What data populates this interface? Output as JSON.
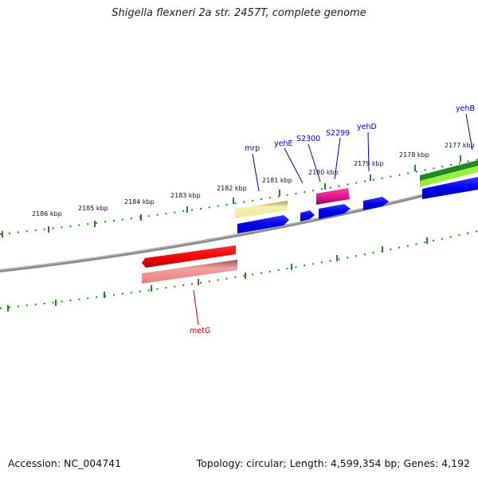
{
  "title": "Shigella flexneri 2a str. 2457T, complete genome",
  "footer": {
    "accession": "Accession: NC_004741",
    "summary": "Topology: circular; Length: 4,599,354 bp; Genes: 4,192"
  },
  "ticks": [
    "2186 kbp",
    "2185 kbp",
    "2184 kbp",
    "2183 kbp",
    "2182 kbp",
    "2181 kbp",
    "2180 kbp",
    "2179 kbp",
    "2178 kbp",
    "2177 kbp"
  ],
  "genes": {
    "upper": [
      "mrp",
      "yehE",
      "S2300",
      "S2299",
      "yehD",
      "yehB"
    ],
    "lower": [
      "metG"
    ]
  },
  "colors": {
    "backbone": "#888888",
    "ticks": "#228822",
    "cds_blue": "#0000ee",
    "gene_label_blue": "#0000cc",
    "gene_label_red": "#cc0000",
    "metG_red": "#ee0000",
    "metG_light": "#e88080",
    "mrp_yellow": "#eee8a0",
    "s2299_magenta": "#dd1188",
    "yehB_green_dark": "#228822",
    "yehB_green_light": "#99ee44"
  }
}
